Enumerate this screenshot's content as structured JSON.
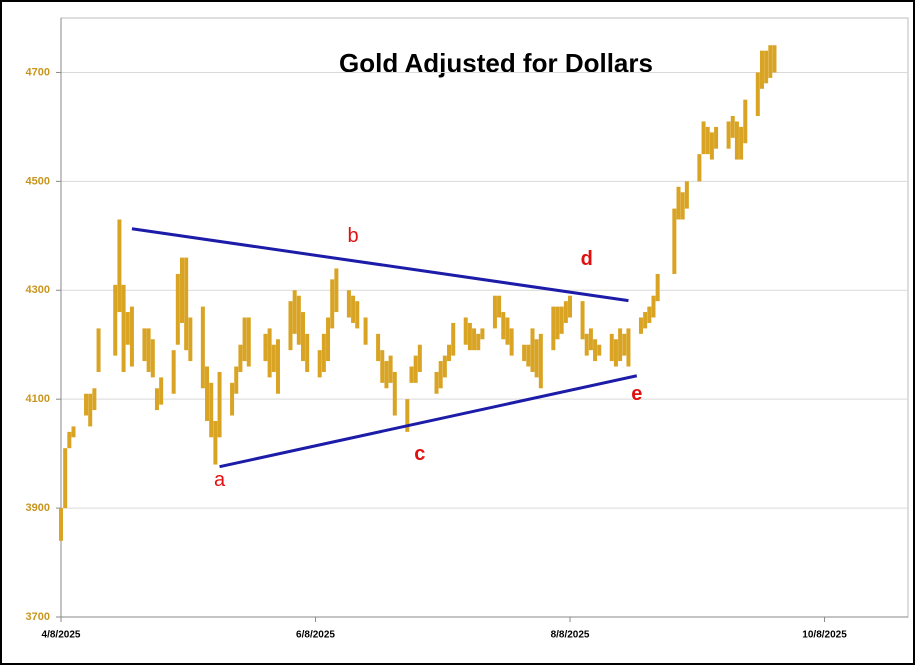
{
  "chart_data": {
    "type": "range-bar",
    "title": "Gold Adjusted for Dollars",
    "color": "#d9a323",
    "tick_color": "#c8961e",
    "grid": true,
    "xlim": [
      "2025-04-08",
      "2025-10-28"
    ],
    "xticks": [
      {
        "value": "2025-04-08",
        "label": "4/8/2025"
      },
      {
        "value": "2025-06-08",
        "label": "6/8/2025"
      },
      {
        "value": "2025-08-08",
        "label": "8/8/2025"
      },
      {
        "value": "2025-10-08",
        "label": "10/8/2025"
      }
    ],
    "ylim": [
      3700,
      4800
    ],
    "yticks": [
      3700,
      3900,
      4100,
      4300,
      4500,
      4700
    ],
    "x": [
      "2025-04-08",
      "2025-04-09",
      "2025-04-10",
      "2025-04-11",
      "2025-04-14",
      "2025-04-15",
      "2025-04-16",
      "2025-04-17",
      "2025-04-21",
      "2025-04-22",
      "2025-04-23",
      "2025-04-24",
      "2025-04-25",
      "2025-04-28",
      "2025-04-29",
      "2025-04-30",
      "2025-05-01",
      "2025-05-02",
      "2025-05-05",
      "2025-05-06",
      "2025-05-07",
      "2025-05-08",
      "2025-05-09",
      "2025-05-12",
      "2025-05-13",
      "2025-05-14",
      "2025-05-15",
      "2025-05-16",
      "2025-05-19",
      "2025-05-20",
      "2025-05-21",
      "2025-05-22",
      "2025-05-23",
      "2025-05-27",
      "2025-05-28",
      "2025-05-29",
      "2025-05-30",
      "2025-06-02",
      "2025-06-03",
      "2025-06-04",
      "2025-06-05",
      "2025-06-06",
      "2025-06-09",
      "2025-06-10",
      "2025-06-11",
      "2025-06-12",
      "2025-06-13",
      "2025-06-16",
      "2025-06-17",
      "2025-06-18",
      "2025-06-20",
      "2025-06-23",
      "2025-06-24",
      "2025-06-25",
      "2025-06-26",
      "2025-06-27",
      "2025-06-30",
      "2025-07-01",
      "2025-07-02",
      "2025-07-03",
      "2025-07-07",
      "2025-07-08",
      "2025-07-09",
      "2025-07-10",
      "2025-07-11",
      "2025-07-14",
      "2025-07-15",
      "2025-07-16",
      "2025-07-17",
      "2025-07-18",
      "2025-07-21",
      "2025-07-22",
      "2025-07-23",
      "2025-07-24",
      "2025-07-25",
      "2025-07-28",
      "2025-07-29",
      "2025-07-30",
      "2025-07-31",
      "2025-08-01",
      "2025-08-04",
      "2025-08-05",
      "2025-08-06",
      "2025-08-07",
      "2025-08-08",
      "2025-08-11",
      "2025-08-12",
      "2025-08-13",
      "2025-08-14",
      "2025-08-15",
      "2025-08-18",
      "2025-08-19",
      "2025-08-20",
      "2025-08-21",
      "2025-08-22",
      "2025-08-25",
      "2025-08-26",
      "2025-08-27",
      "2025-08-28",
      "2025-08-29",
      "2025-09-02",
      "2025-09-03",
      "2025-09-04",
      "2025-09-05",
      "2025-09-08",
      "2025-09-09",
      "2025-09-10",
      "2025-09-11",
      "2025-09-12",
      "2025-09-15",
      "2025-09-16",
      "2025-09-17",
      "2025-09-18",
      "2025-09-19",
      "2025-09-22",
      "2025-09-23",
      "2025-09-24",
      "2025-09-25",
      "2025-09-26"
    ],
    "low": [
      3840,
      3900,
      4010,
      4030,
      4070,
      4050,
      4080,
      4150,
      4180,
      4260,
      4150,
      4200,
      4160,
      4170,
      4150,
      4140,
      4080,
      4090,
      4110,
      4200,
      4240,
      4190,
      4170,
      4120,
      4060,
      4030,
      3980,
      4030,
      4070,
      4110,
      4150,
      4170,
      4160,
      4170,
      4140,
      4150,
      4110,
      4190,
      4220,
      4200,
      4170,
      4150,
      4140,
      4150,
      4170,
      4230,
      4260,
      4250,
      4240,
      4230,
      4200,
      4170,
      4130,
      4120,
      4130,
      4070,
      4040,
      4130,
      4130,
      4150,
      4110,
      4120,
      4140,
      4170,
      4180,
      4200,
      4190,
      4190,
      4190,
      4210,
      4230,
      4250,
      4210,
      4200,
      4180,
      4170,
      4160,
      4150,
      4140,
      4120,
      4190,
      4210,
      4220,
      4240,
      4250,
      4210,
      4180,
      4190,
      4170,
      4180,
      4170,
      4160,
      4170,
      4180,
      4160,
      4220,
      4230,
      4240,
      4250,
      4280,
      4330,
      4430,
      4430,
      4450,
      4500,
      4550,
      4550,
      4540,
      4560,
      4560,
      4580,
      4540,
      4540,
      4570,
      4620,
      4670,
      4680,
      4690,
      4700
    ],
    "high": [
      3900,
      4010,
      4040,
      4050,
      4110,
      4110,
      4120,
      4230,
      4310,
      4430,
      4310,
      4260,
      4270,
      4230,
      4230,
      4210,
      4120,
      4140,
      4190,
      4330,
      4360,
      4360,
      4250,
      4270,
      4160,
      4130,
      4060,
      4150,
      4130,
      4160,
      4200,
      4250,
      4250,
      4220,
      4230,
      4200,
      4210,
      4280,
      4300,
      4290,
      4260,
      4220,
      4190,
      4220,
      4250,
      4320,
      4340,
      4300,
      4290,
      4280,
      4250,
      4220,
      4190,
      4170,
      4180,
      4150,
      4100,
      4160,
      4180,
      4200,
      4150,
      4170,
      4180,
      4200,
      4240,
      4250,
      4240,
      4230,
      4220,
      4230,
      4290,
      4290,
      4260,
      4250,
      4230,
      4200,
      4200,
      4230,
      4210,
      4220,
      4270,
      4270,
      4270,
      4280,
      4290,
      4280,
      4220,
      4230,
      4210,
      4200,
      4220,
      4210,
      4230,
      4220,
      4230,
      4250,
      4260,
      4270,
      4290,
      4330,
      4450,
      4490,
      4480,
      4500,
      4550,
      4610,
      4600,
      4590,
      4600,
      4610,
      4620,
      4610,
      4600,
      4650,
      4700,
      4740,
      4740,
      4750,
      4750
    ],
    "trendlines": [
      {
        "color": "#1c1ca8",
        "points": [
          [
            "2025-04-25",
            4413
          ],
          [
            "2025-08-22",
            4281
          ]
        ]
      },
      {
        "color": "#1c1ca8",
        "points": [
          [
            "2025-05-16",
            3976
          ],
          [
            "2025-08-24",
            4143
          ]
        ]
      }
    ],
    "annotations": [
      {
        "text": "a",
        "x": "2025-05-16",
        "y": 3950,
        "bold": false,
        "color": "#e01010"
      },
      {
        "text": "b",
        "x": "2025-06-17",
        "y": 4398,
        "bold": false,
        "color": "#e01010"
      },
      {
        "text": "c",
        "x": "2025-07-03",
        "y": 3998,
        "bold": true,
        "color": "#e01010"
      },
      {
        "text": "d",
        "x": "2025-08-12",
        "y": 4356,
        "bold": true,
        "color": "#e01010"
      },
      {
        "text": "e",
        "x": "2025-08-24",
        "y": 4108,
        "bold": true,
        "color": "#e01010"
      }
    ]
  }
}
